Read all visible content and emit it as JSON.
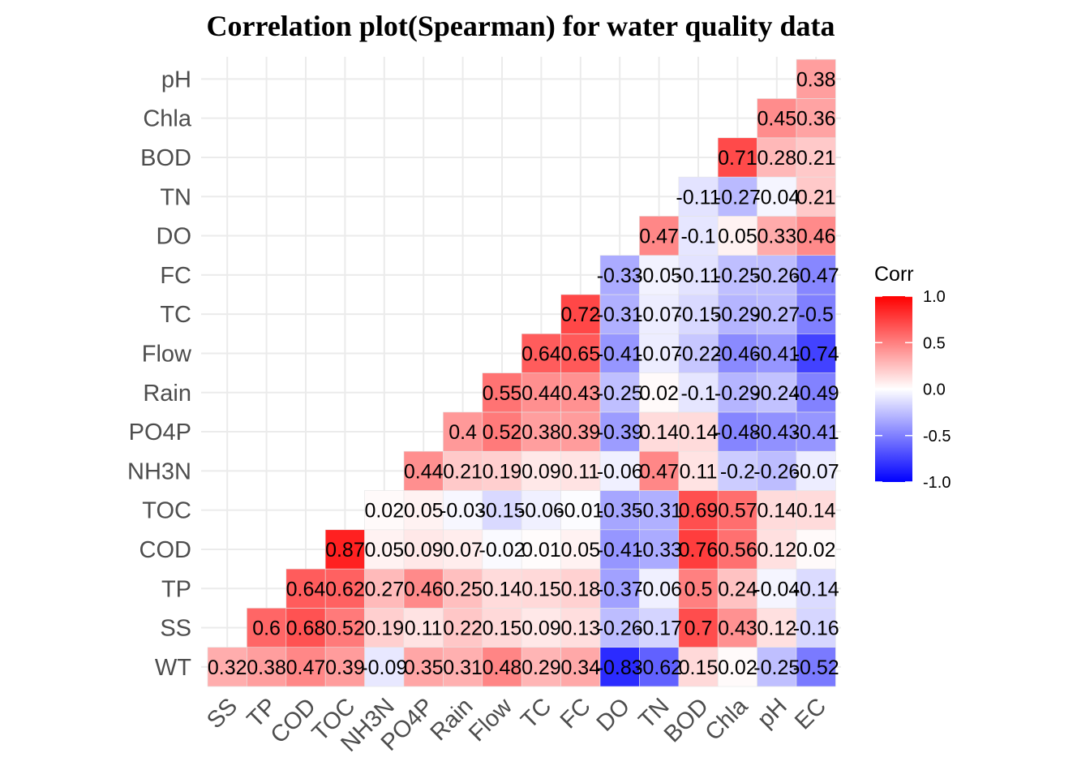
{
  "chart_data": {
    "type": "heatmap",
    "title": "Correlation plot(Spearman) for water quality data",
    "x_categories": [
      "SS",
      "TP",
      "COD",
      "TOC",
      "NH3N",
      "PO4P",
      "Rain",
      "Flow",
      "TC",
      "FC",
      "DO",
      "TN",
      "BOD",
      "Chla",
      "pH",
      "EC"
    ],
    "y_categories": [
      "WT",
      "SS",
      "TP",
      "COD",
      "TOC",
      "NH3N",
      "PO4P",
      "Rain",
      "Flow",
      "TC",
      "FC",
      "DO",
      "TN",
      "BOD",
      "Chla",
      "pH"
    ],
    "rows": [
      {
        "y": "WT",
        "values": [
          0.32,
          0.38,
          0.47,
          0.39,
          -0.09,
          0.35,
          0.31,
          0.48,
          0.29,
          0.34,
          -0.83,
          -0.62,
          0.15,
          0.02,
          -0.25,
          -0.52
        ]
      },
      {
        "y": "SS",
        "values": [
          0.6,
          0.68,
          0.52,
          0.19,
          0.11,
          0.22,
          0.15,
          0.09,
          0.13,
          -0.26,
          -0.17,
          0.7,
          0.43,
          0.12,
          -0.16
        ]
      },
      {
        "y": "TP",
        "values": [
          0.64,
          0.62,
          0.27,
          0.46,
          0.25,
          0.14,
          0.15,
          0.18,
          -0.37,
          -0.06,
          0.5,
          0.24,
          -0.04,
          -0.14
        ]
      },
      {
        "y": "COD",
        "values": [
          0.87,
          0.05,
          0.09,
          0.07,
          -0.02,
          0.01,
          0.05,
          -0.41,
          -0.33,
          0.76,
          0.56,
          0.12,
          0.02
        ]
      },
      {
        "y": "TOC",
        "values": [
          0.02,
          0.05,
          -0.03,
          -0.15,
          -0.06,
          -0.01,
          -0.35,
          -0.31,
          0.69,
          0.57,
          0.14,
          0.14
        ]
      },
      {
        "y": "NH3N",
        "values": [
          0.44,
          0.21,
          0.19,
          0.09,
          0.11,
          -0.06,
          0.47,
          0.11,
          -0.2,
          -0.26,
          -0.07
        ]
      },
      {
        "y": "PO4P",
        "values": [
          0.4,
          0.52,
          0.38,
          0.39,
          -0.39,
          0.14,
          0.14,
          -0.48,
          -0.43,
          -0.41
        ]
      },
      {
        "y": "Rain",
        "values": [
          0.55,
          0.44,
          0.43,
          -0.25,
          0.02,
          -0.1,
          -0.29,
          -0.24,
          -0.49
        ]
      },
      {
        "y": "Flow",
        "values": [
          0.64,
          0.65,
          -0.41,
          -0.07,
          -0.22,
          -0.46,
          -0.41,
          -0.74
        ]
      },
      {
        "y": "TC",
        "values": [
          0.72,
          -0.31,
          -0.07,
          -0.15,
          -0.29,
          -0.27,
          -0.5
        ]
      },
      {
        "y": "FC",
        "values": [
          -0.33,
          -0.05,
          -0.11,
          -0.25,
          -0.26,
          -0.47
        ]
      },
      {
        "y": "DO",
        "values": [
          0.47,
          -0.1,
          0.05,
          0.33,
          0.46
        ]
      },
      {
        "y": "TN",
        "values": [
          -0.11,
          -0.27,
          -0.04,
          0.21
        ]
      },
      {
        "y": "BOD",
        "values": [
          0.71,
          0.28,
          0.21
        ]
      },
      {
        "y": "Chla",
        "values": [
          0.45,
          0.36
        ]
      },
      {
        "y": "pH",
        "values": [
          0.38
        ]
      }
    ],
    "legend": {
      "title": "Corr",
      "ticks": [
        "1.0",
        "0.5",
        "0.0",
        "-0.5",
        "-1.0"
      ],
      "position": "right",
      "colors": {
        "low": "#0000ff",
        "mid": "#ffffff",
        "high": "#ff0000"
      },
      "limits": [
        -1,
        1
      ]
    },
    "grid": true
  }
}
